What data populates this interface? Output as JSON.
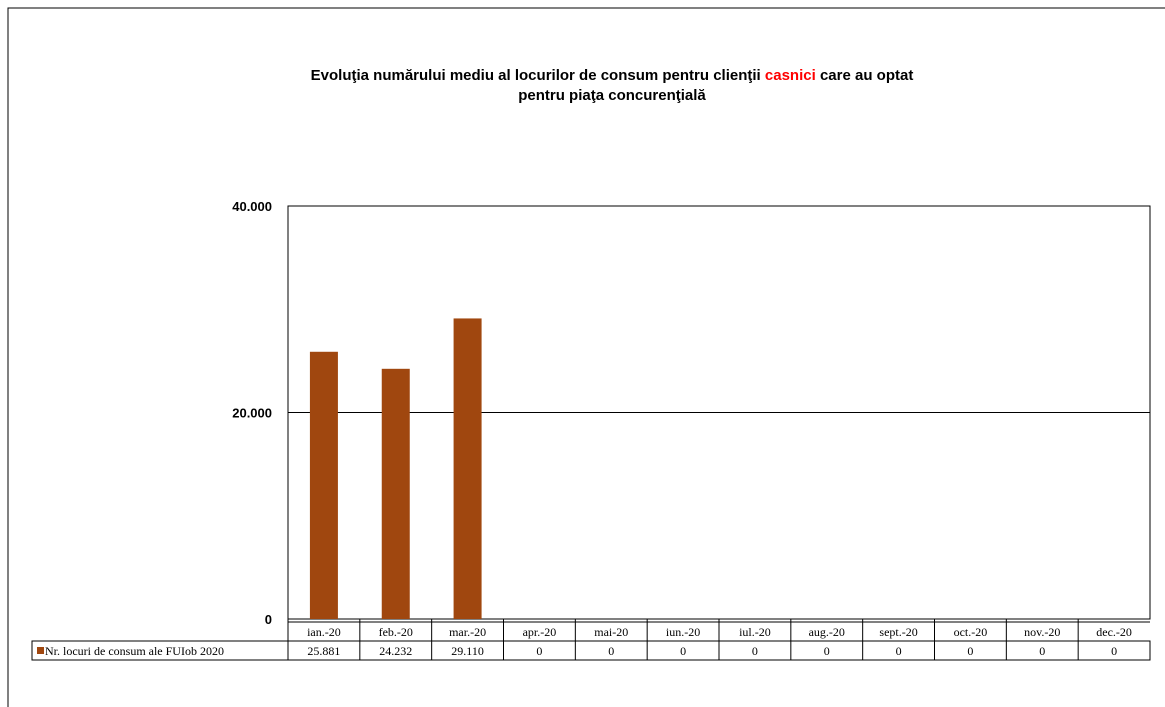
{
  "chart_data": {
    "type": "bar",
    "title": [
      "Evoluţia numărului mediu al locurilor de consum pentru clienţii",
      "casnici",
      "care au optat",
      "pentru piaţa concurenţială"
    ],
    "title_highlight_color": "#ff0000",
    "categories": [
      "ian.-20",
      "feb.-20",
      "mar.-20",
      "apr.-20",
      "mai-20",
      "iun.-20",
      "iul.-20",
      "aug.-20",
      "sept.-20",
      "oct.-20",
      "nov.-20",
      "dec.-20"
    ],
    "series": [
      {
        "name": "Nr. locuri de consum ale FUIob 2020",
        "color": "#a0470f",
        "values": [
          25881,
          24232,
          29110,
          0,
          0,
          0,
          0,
          0,
          0,
          0,
          0,
          0
        ],
        "value_labels": [
          "25.881",
          "24.232",
          "29.110",
          "0",
          "0",
          "0",
          "0",
          "0",
          "0",
          "0",
          "0",
          "0"
        ]
      }
    ],
    "ylim": [
      0,
      40000
    ],
    "yticks": [
      0,
      {
        "value": 20000,
        "label": "20.000"
      },
      {
        "value": 40000,
        "label": "40.000"
      }
    ],
    "grid": true,
    "data_table": true
  }
}
